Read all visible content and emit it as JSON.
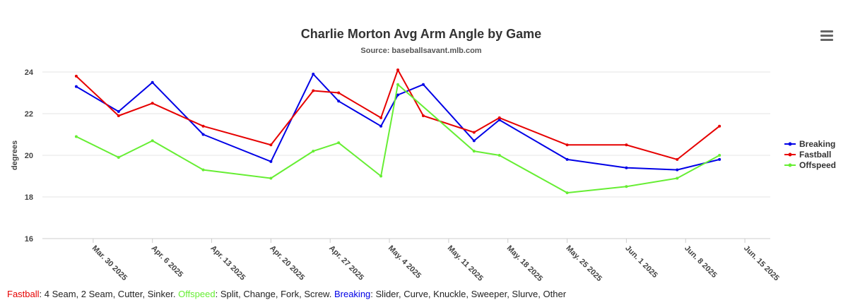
{
  "menu_icon": "hamburger-menu-icon",
  "chart_data": {
    "type": "line",
    "title": "Charlie Morton Avg Arm Angle by Game",
    "subtitle": "Source: baseballsavant.mlb.com",
    "xlabel": "",
    "ylabel": "degrees",
    "ylim": [
      16,
      24
    ],
    "y_ticks": [
      "16",
      "18",
      "20",
      "22",
      "24"
    ],
    "x_ticks": [
      "Mar. 30 2025",
      "Apr. 6 2025",
      "Apr. 13 2025",
      "Apr. 20 2025",
      "Apr. 27 2025",
      "May. 4 2025",
      "May. 11 2025",
      "May. 18 2025",
      "May. 25 2025",
      "Jun. 1 2025",
      "Jun. 8 2025",
      "Jun. 15 2025"
    ],
    "grid": true,
    "legend_position": "right",
    "series": [
      {
        "name": "Breaking",
        "color": "#0000e6",
        "points": [
          {
            "x": "2025-03-28",
            "y": 23.3
          },
          {
            "x": "2025-04-02",
            "y": 22.1
          },
          {
            "x": "2025-04-06",
            "y": 23.5
          },
          {
            "x": "2025-04-12",
            "y": 21.0
          },
          {
            "x": "2025-04-20",
            "y": 19.7
          },
          {
            "x": "2025-04-25",
            "y": 23.9
          },
          {
            "x": "2025-04-28",
            "y": 22.6
          },
          {
            "x": "2025-05-03",
            "y": 21.4
          },
          {
            "x": "2025-05-05",
            "y": 22.9
          },
          {
            "x": "2025-05-08",
            "y": 23.4
          },
          {
            "x": "2025-05-14",
            "y": 20.7
          },
          {
            "x": "2025-05-17",
            "y": 21.7
          },
          {
            "x": "2025-05-25",
            "y": 19.8
          },
          {
            "x": "2025-06-01",
            "y": 19.4
          },
          {
            "x": "2025-06-07",
            "y": 19.3
          },
          {
            "x": "2025-06-12",
            "y": 19.8
          }
        ]
      },
      {
        "name": "Fastball",
        "color": "#e60000",
        "points": [
          {
            "x": "2025-03-28",
            "y": 23.8
          },
          {
            "x": "2025-04-02",
            "y": 21.9
          },
          {
            "x": "2025-04-06",
            "y": 22.5
          },
          {
            "x": "2025-04-12",
            "y": 21.4
          },
          {
            "x": "2025-04-20",
            "y": 20.5
          },
          {
            "x": "2025-04-25",
            "y": 23.1
          },
          {
            "x": "2025-04-28",
            "y": 23.0
          },
          {
            "x": "2025-05-03",
            "y": 21.8
          },
          {
            "x": "2025-05-05",
            "y": 24.1
          },
          {
            "x": "2025-05-08",
            "y": 21.9
          },
          {
            "x": "2025-05-14",
            "y": 21.1
          },
          {
            "x": "2025-05-17",
            "y": 21.8
          },
          {
            "x": "2025-05-25",
            "y": 20.5
          },
          {
            "x": "2025-06-01",
            "y": 20.5
          },
          {
            "x": "2025-06-07",
            "y": 19.8
          },
          {
            "x": "2025-06-12",
            "y": 21.4
          }
        ]
      },
      {
        "name": "Offspeed",
        "color": "#66ee33",
        "points": [
          {
            "x": "2025-03-28",
            "y": 20.9
          },
          {
            "x": "2025-04-02",
            "y": 19.9
          },
          {
            "x": "2025-04-06",
            "y": 20.7
          },
          {
            "x": "2025-04-12",
            "y": 19.3
          },
          {
            "x": "2025-04-20",
            "y": 18.9
          },
          {
            "x": "2025-04-25",
            "y": 20.2
          },
          {
            "x": "2025-04-28",
            "y": 20.6
          },
          {
            "x": "2025-05-03",
            "y": 19.0
          },
          {
            "x": "2025-05-05",
            "y": 23.4
          },
          {
            "x": "2025-05-14",
            "y": 20.2
          },
          {
            "x": "2025-05-17",
            "y": 20.0
          },
          {
            "x": "2025-05-25",
            "y": 18.2
          },
          {
            "x": "2025-06-01",
            "y": 18.5
          },
          {
            "x": "2025-06-07",
            "y": 18.9
          },
          {
            "x": "2025-06-12",
            "y": 20.0
          }
        ]
      }
    ]
  },
  "footnote": {
    "fastball_label": "Fastball",
    "fastball_text": ": 4 Seam, 2 Seam, Cutter, Sinker. ",
    "offspeed_label": "Offspeed",
    "offspeed_text": ": Split, Change, Fork, Screw. ",
    "breaking_label": "Breaking",
    "breaking_text": ": Slider, Curve, Knuckle, Sweeper, Slurve, Other"
  }
}
